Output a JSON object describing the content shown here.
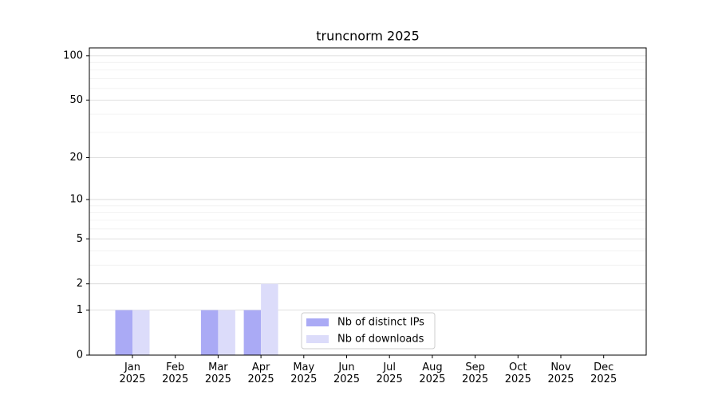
{
  "chart_data": {
    "type": "bar",
    "title": "truncnorm 2025",
    "categories": [
      "Jan 2025",
      "Feb 2025",
      "Mar 2025",
      "Apr 2025",
      "May 2025",
      "Jun 2025",
      "Jul 2025",
      "Aug 2025",
      "Sep 2025",
      "Oct 2025",
      "Nov 2025",
      "Dec 2025"
    ],
    "series": [
      {
        "name": "Nb of distinct IPs",
        "color": "#aaaaf5",
        "values": [
          1,
          0,
          1,
          1,
          0,
          0,
          0,
          0,
          0,
          0,
          0,
          0
        ]
      },
      {
        "name": "Nb of downloads",
        "color": "#dcdcfa",
        "values": [
          1,
          0,
          1,
          2,
          0,
          0,
          0,
          0,
          0,
          0,
          0,
          0
        ]
      }
    ],
    "yscale": "log1p",
    "ylim": [
      0,
      113
    ],
    "yticks": [
      0,
      1,
      2,
      5,
      10,
      20,
      50,
      100
    ],
    "yminorticks": [
      3,
      4,
      6,
      7,
      8,
      9,
      30,
      40,
      60,
      70,
      80,
      90
    ],
    "grid": true,
    "legend": "lower center"
  }
}
